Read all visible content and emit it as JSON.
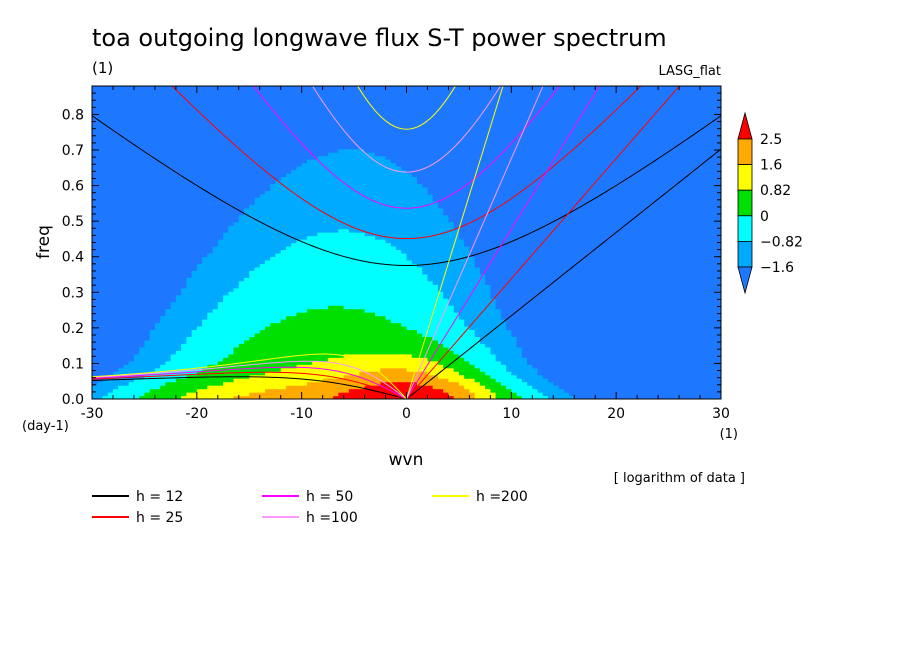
{
  "chart_data": {
    "type": "heatmap",
    "title": "toa outgoing longwave flux S-T power spectrum",
    "subtitle_left": "(1)",
    "subtitle_right": "LASG_flat",
    "xlabel": "wvn",
    "ylabel": "freq",
    "x_unit": "(1)",
    "y_unit": "(day-1)",
    "xlim": [
      -30,
      30
    ],
    "ylim": [
      0,
      0.88
    ],
    "xticks": [
      -30,
      -20,
      -10,
      0,
      10,
      20,
      30
    ],
    "xtick_labels": [
      "-30",
      "-20",
      "-10",
      "0",
      "10",
      "20",
      "30"
    ],
    "yticks": [
      0.0,
      0.1,
      0.2,
      0.3,
      0.4,
      0.5,
      0.6,
      0.7,
      0.8
    ],
    "ytick_labels": [
      "0.0",
      "0.1",
      "0.2",
      "0.3",
      "0.4",
      "0.5",
      "0.6",
      "0.7",
      "0.8"
    ],
    "note": "[ logarithm of data ]",
    "colorbar": {
      "levels": [
        -1.6,
        -0.82,
        0,
        0.82,
        1.6,
        2.5
      ],
      "labels": [
        "2.5",
        "1.6",
        "0.82",
        "0",
        "−0.82",
        "−1.6"
      ],
      "colors": [
        "#1e78ff",
        "#00aaff",
        "#00ffff",
        "#00e000",
        "#ffff00",
        "#ffaa00",
        "#ff0000"
      ]
    },
    "dispersion_curves": [
      {
        "name": "h = 12",
        "h": 12,
        "color": "#000000"
      },
      {
        "name": "h = 25",
        "h": 25,
        "color": "#ff0000"
      },
      {
        "name": "h = 50",
        "h": 50,
        "color": "#ff00ff"
      },
      {
        "name": "h =100",
        "h": 100,
        "color": "#ff99ff"
      },
      {
        "name": "h =200",
        "h": 200,
        "color": "#ffff00"
      }
    ]
  }
}
